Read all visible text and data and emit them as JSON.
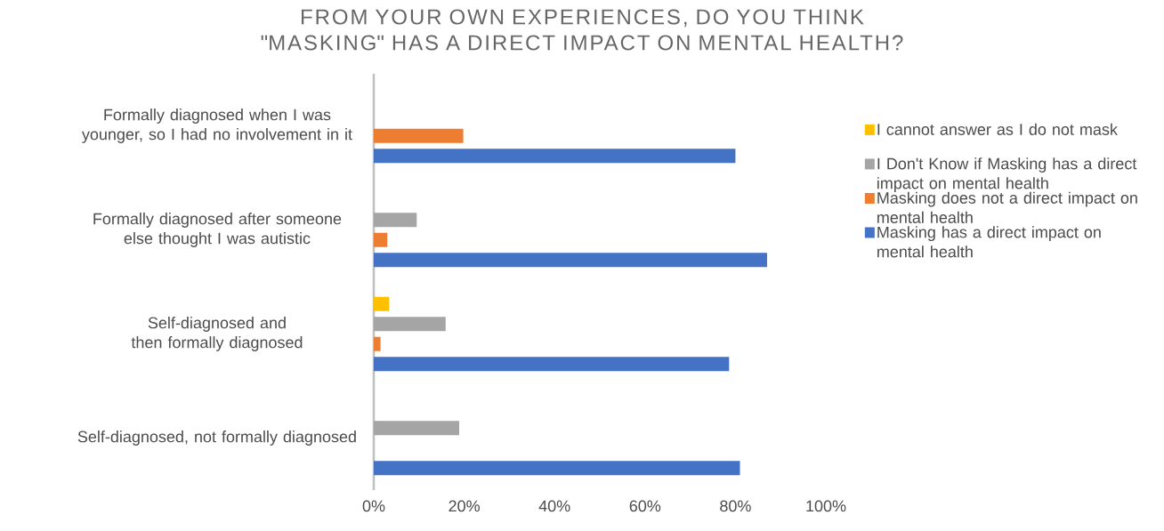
{
  "chart_data": {
    "type": "bar",
    "orientation": "horizontal",
    "title": "FROM YOUR OWN EXPERIENCES, DO YOU THINK \"MASKING\" HAS A DIRECT IMPACT ON MENTAL HEALTH?",
    "categories": [
      "Formally diagnosed when I was younger, so I had no involvement in it",
      "Formally diagnosed after someone else thought I was autistic",
      "Self-diagnosed and then formally diagnosed",
      "Self-diagnosed, not formally diagnosed"
    ],
    "series": [
      {
        "name": "I cannot answer as I do not mask",
        "color": "#ffc000",
        "values": [
          null,
          null,
          3.4,
          null
        ]
      },
      {
        "name": "I Don't Know if Masking has a direct impact on mental health",
        "color": "#a5a5a5",
        "values": [
          null,
          9.5,
          15.9,
          18.9
        ]
      },
      {
        "name": "Masking does not a direct impact on mental health",
        "color": "#ed7d31",
        "values": [
          19.8,
          3,
          1.5,
          null
        ]
      },
      {
        "name": "Masking has a direct impact on mental health",
        "color": "#4472c4",
        "values": [
          80,
          87,
          78.6,
          81
        ]
      }
    ],
    "xlim": [
      0,
      100
    ],
    "xticks": [
      {
        "value": 0,
        "label": "0%"
      },
      {
        "value": 20,
        "label": "20%"
      },
      {
        "value": 40,
        "label": "40%"
      },
      {
        "value": 60,
        "label": "60%"
      },
      {
        "value": 80,
        "label": "80%"
      },
      {
        "value": 100,
        "label": "100%"
      }
    ],
    "legend": "right",
    "grid": false
  }
}
